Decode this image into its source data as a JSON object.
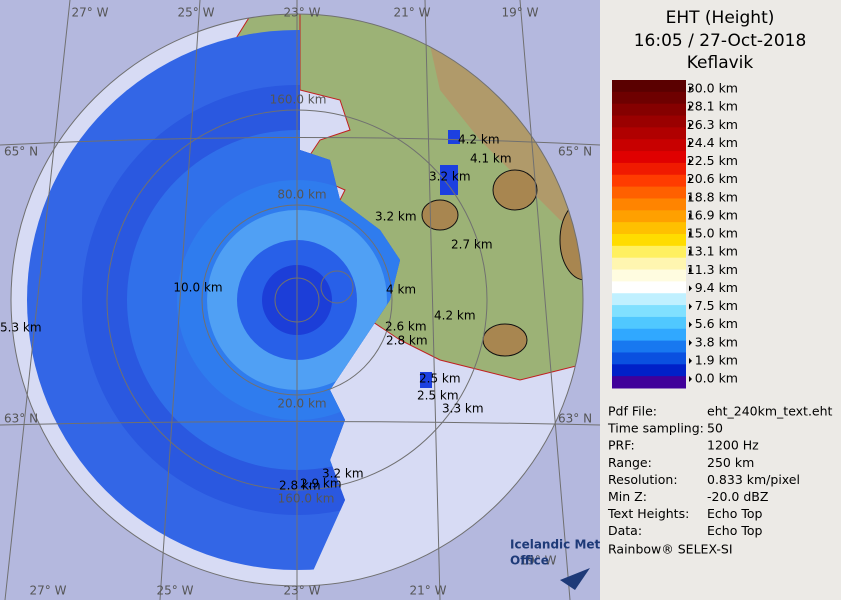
{
  "header": {
    "title": "EHT (Height)",
    "time": "16:05 / 27-Oct-2018",
    "site": "Keflavik"
  },
  "legend": {
    "labels": [
      "30.0 km",
      "28.1 km",
      "26.3 km",
      "24.4 km",
      "22.5 km",
      "20.6 km",
      "18.8 km",
      "16.9 km",
      "15.0 km",
      "13.1 km",
      "11.3 km",
      "9.4 km",
      "7.5 km",
      "5.6 km",
      "3.8 km",
      "1.9 km",
      "0.0 km"
    ],
    "colors": [
      "#5a0000",
      "#6e0000",
      "#850000",
      "#9a0000",
      "#b00000",
      "#c80000",
      "#e00000",
      "#f01a00",
      "#ff3c00",
      "#ff6000",
      "#ff8400",
      "#ffa000",
      "#ffc000",
      "#ffdc00",
      "#fff060",
      "#fff6b0",
      "#fffce0",
      "#ffffff",
      "#c0f0ff",
      "#80e0ff",
      "#50c8ff",
      "#30a8ff",
      "#1878f0",
      "#0a50e0",
      "#0020c8",
      "#40009a"
    ]
  },
  "info": {
    "rows": [
      [
        "Pdf File:",
        "eht_240km_text.eht"
      ],
      [
        "Time sampling:",
        "50"
      ],
      [
        "PRF:",
        "1200 Hz"
      ],
      [
        "Range:",
        "250 km"
      ],
      [
        "Resolution:",
        "0.833 km/pixel"
      ],
      [
        "Min Z:",
        "-20.0 dBZ"
      ],
      [
        "Text Heights:",
        "Echo Top"
      ],
      [
        "Data:",
        "Echo Top"
      ]
    ],
    "footer": "Rainbow® SELEX-SI"
  },
  "map": {
    "longitudes": [
      "27° W",
      "25° W",
      "23° W",
      "21° W",
      "19° W"
    ],
    "latitudes": [
      "65° N",
      "63° N"
    ],
    "ranges": [
      "160.0 km",
      "80.0 km",
      "10.0 km",
      "20.0 km",
      "160.0 km"
    ],
    "echo_heights": [
      "4.2 km",
      "4.1 km",
      "3.2 km",
      "3.2 km",
      "2.7 km",
      "4 km",
      "4.2 km",
      "2.6 km",
      "2.8 km",
      "2.5 km",
      "2.5 km",
      "3.3 km",
      "3.2 km",
      "2.8 km",
      "2.9 km",
      "5.3 km"
    ],
    "logo": [
      "Icelandic Met",
      "Office"
    ]
  }
}
